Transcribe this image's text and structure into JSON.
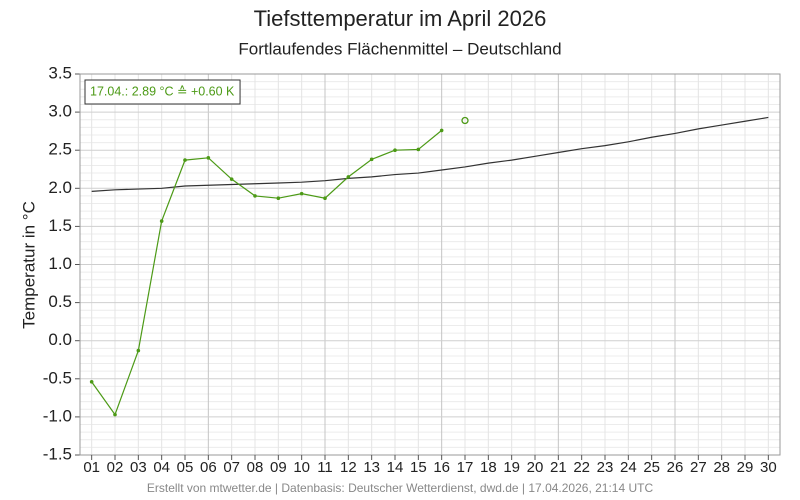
{
  "chart_data": {
    "type": "line",
    "title": "Tiefsttemperatur im April 2026",
    "subtitle": "Fortlaufendes Flächenmittel – Deutschland",
    "y_label": "Temperatur in °C",
    "annotation": "17.04.: 2.89 °C ≙ +0.60 K",
    "footer": "Erstellt von mtwetter.de | Datenbasis: Deutscher Wetterdienst, dwd.de | 17.04.2026, 21:14 UTC",
    "categories": [
      "01",
      "02",
      "03",
      "04",
      "05",
      "06",
      "07",
      "08",
      "09",
      "10",
      "11",
      "12",
      "13",
      "14",
      "15",
      "16",
      "17",
      "18",
      "19",
      "20",
      "21",
      "22",
      "23",
      "24",
      "25",
      "26",
      "27",
      "28",
      "29",
      "30"
    ],
    "series": [
      {
        "color": "#333333",
        "marker": false,
        "values": [
          1.96,
          1.98,
          1.99,
          2.0,
          2.03,
          2.04,
          2.05,
          2.06,
          2.07,
          2.08,
          2.1,
          2.13,
          2.15,
          2.18,
          2.2,
          2.24,
          2.28,
          2.33,
          2.37,
          2.42,
          2.47,
          2.52,
          2.56,
          2.61,
          2.67,
          2.72,
          2.78,
          2.83,
          2.88,
          2.93
        ]
      },
      {
        "color": "#4c9a16",
        "marker": true,
        "values": [
          -0.54,
          -0.97,
          -0.13,
          1.57,
          2.37,
          2.4,
          2.12,
          1.9,
          1.87,
          1.93,
          1.87,
          2.15,
          2.38,
          2.5,
          2.51,
          2.76,
          null,
          null,
          null,
          null,
          null,
          null,
          null,
          null,
          null,
          null,
          null,
          null,
          null,
          null
        ]
      },
      {
        "color": "#4c9a16",
        "marker": "open",
        "values": [
          null,
          null,
          null,
          null,
          null,
          null,
          null,
          null,
          null,
          null,
          null,
          null,
          null,
          null,
          null,
          null,
          2.89,
          null,
          null,
          null,
          null,
          null,
          null,
          null,
          null,
          null,
          null,
          null,
          null,
          null
        ]
      }
    ],
    "ylim": [
      -1.5,
      3.5
    ],
    "yticks": [
      -1.5,
      {
        "value": -1,
        "label": "-1.0"
      },
      -0.5,
      {
        "value": 0,
        "label": "0.0"
      },
      0.5,
      {
        "value": 1,
        "label": "1.0"
      },
      1.5,
      {
        "value": 2,
        "label": "2.0"
      },
      2.5,
      {
        "value": 3,
        "label": "3.0"
      },
      3.5
    ],
    "grid": true
  }
}
